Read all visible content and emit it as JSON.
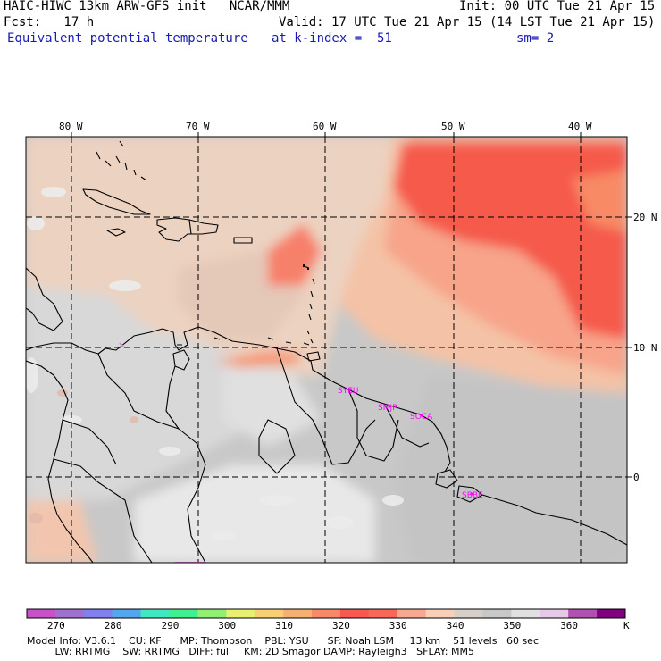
{
  "header": {
    "left_line1": "HAIC-HIWC 13km ARW-GFS init   NCAR/MMM",
    "left_line2": "Fcst:   17 h",
    "left_line3": "Equivalent potential temperature",
    "right_line1": "Init: 00 UTC Tue 21 Apr 15",
    "right_line2": "Valid: 17 UTC Tue 21 Apr 15 (14 LST Tue 21 Apr 15)",
    "center_line3": "at k-index =  51",
    "right_line3": "sm= 2"
  },
  "map": {
    "lon_labels": [
      "80 W",
      "70 W",
      "60 W",
      "50 W",
      "40 W"
    ],
    "lat_labels": [
      "20 N",
      "10 N",
      "0"
    ],
    "stations": [
      "SYEU",
      "SMJP",
      "SOCA",
      "SBBE"
    ]
  },
  "colorbar": {
    "colors": [
      "#c850c8",
      "#a070d0",
      "#8080f0",
      "#50a8f0",
      "#40e8c0",
      "#40f090",
      "#90f070",
      "#e8f070",
      "#f8d070",
      "#f8b070",
      "#f88868",
      "#f85850",
      "#f86858",
      "#f8a890",
      "#f8d0b8",
      "#d8d0c8",
      "#c8c8c8",
      "#e0e0e0",
      "#e8c8e8",
      "#b050b0",
      "#800080"
    ],
    "tick_labels": [
      "270",
      "280",
      "290",
      "300",
      "310",
      "320",
      "330",
      "340",
      "350",
      "360"
    ],
    "unit": "K"
  },
  "footer": {
    "line1": "Model Info: V3.6.1    CU: KF      MP: Thompson    PBL: YSU      SF: Noah LSM     13 km    51 levels   60 sec",
    "line2": "         LW: RRTMG    SW: RRTMG   DIFF: full    KM: 2D Smagor DAMP: Rayleigh3   SFLAY: MM5"
  }
}
